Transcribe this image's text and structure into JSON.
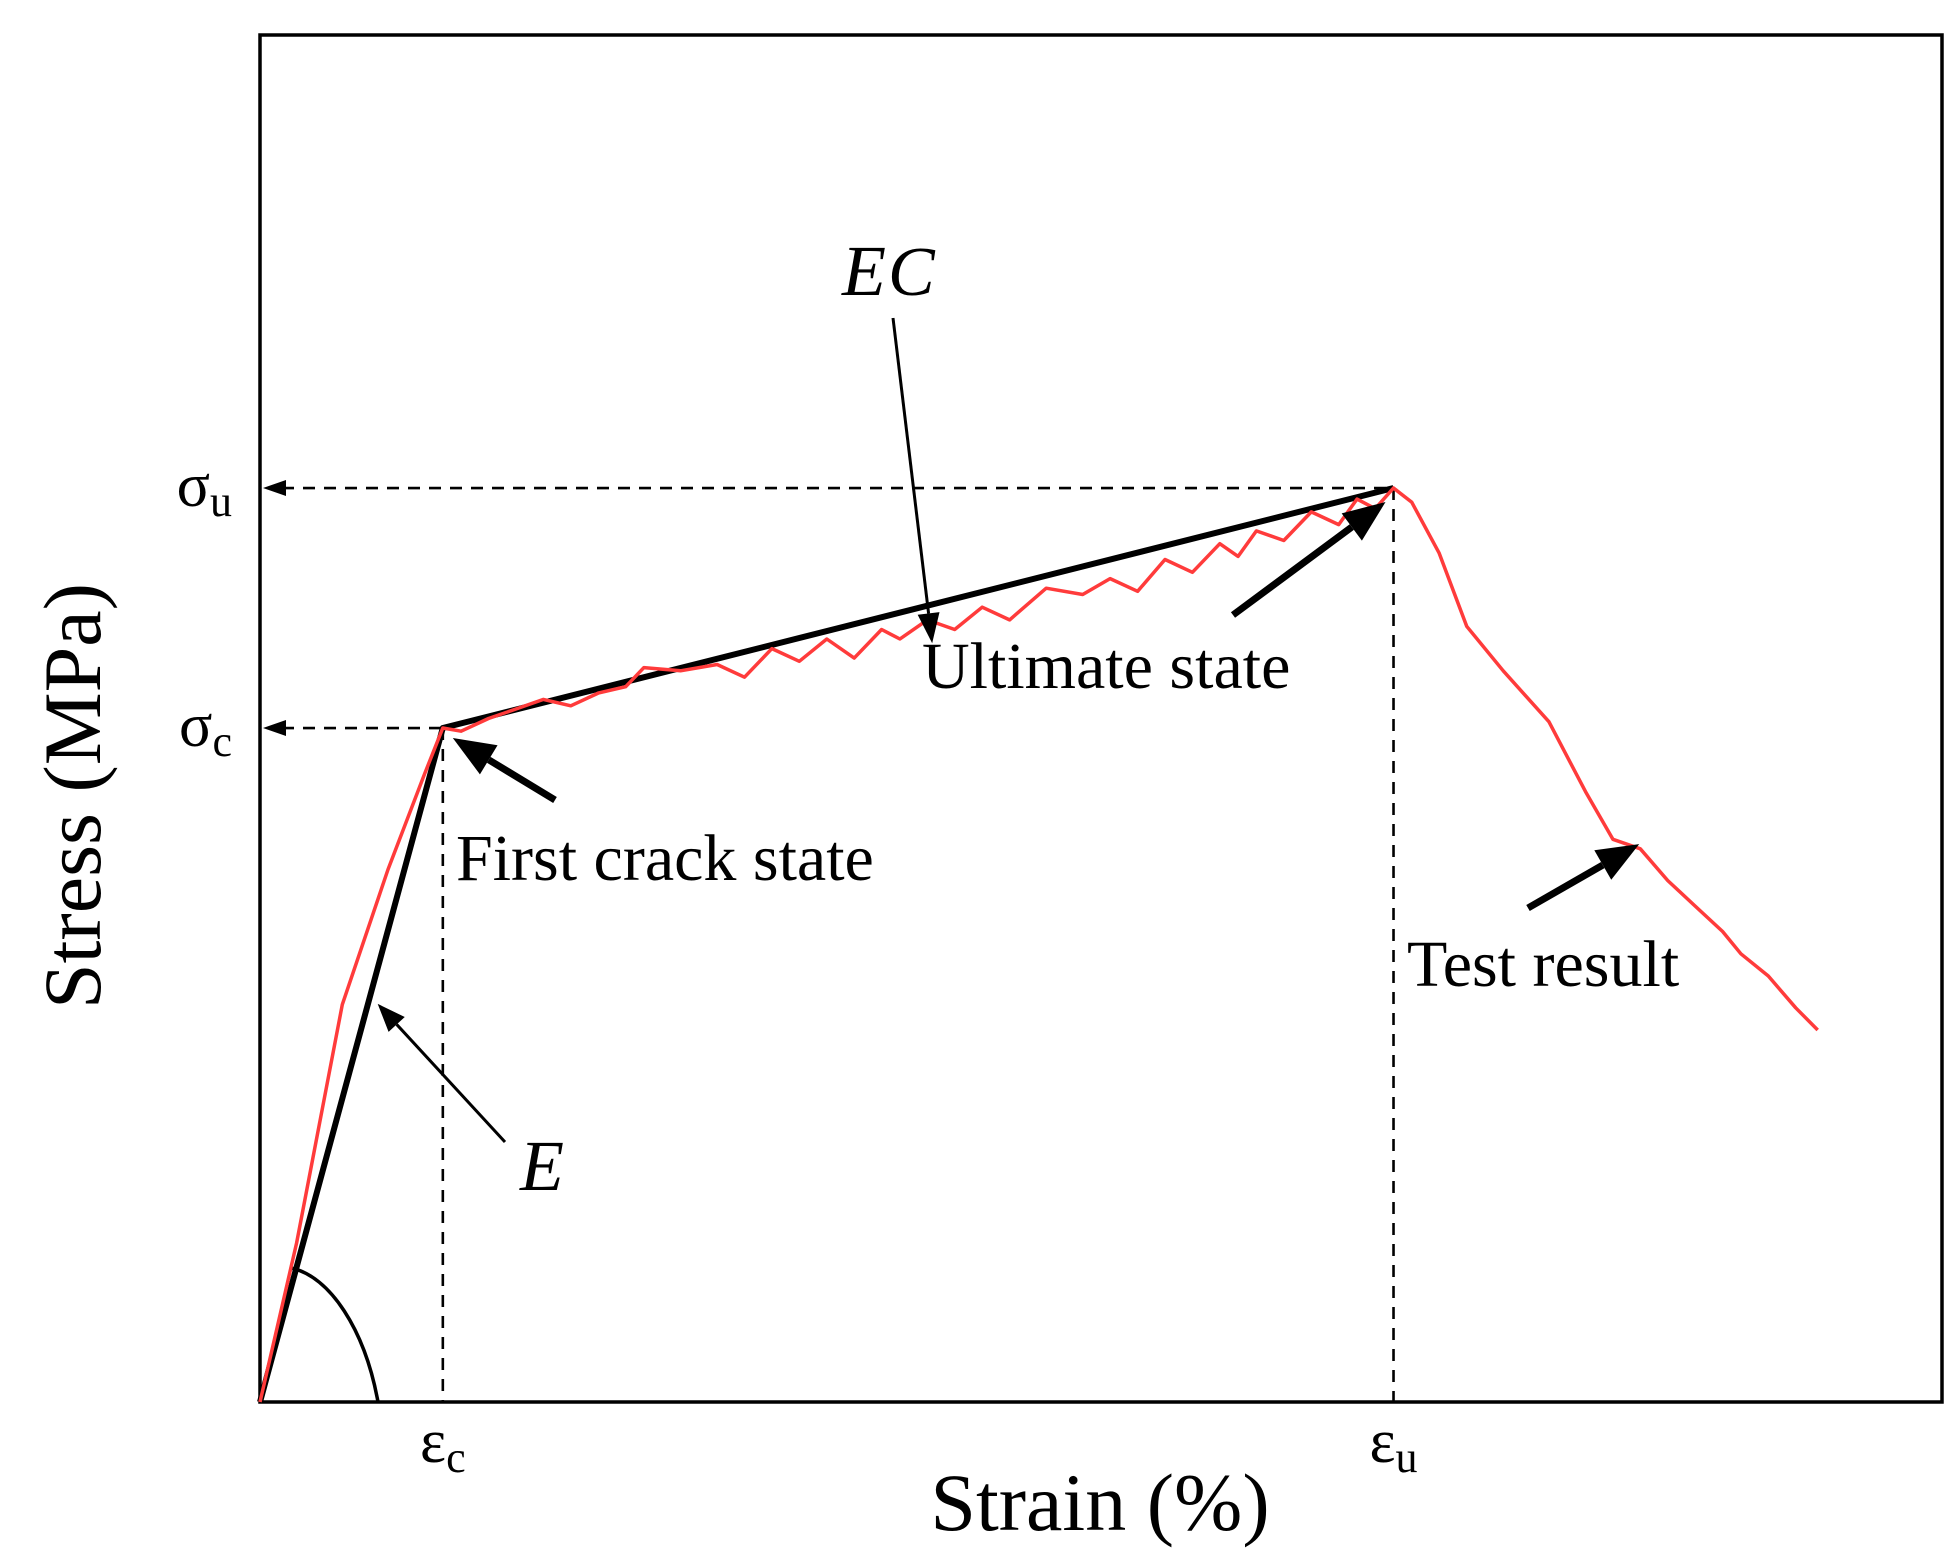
{
  "chart_data": {
    "type": "line",
    "title": "",
    "xlabel": "Strain (%)",
    "ylabel": "Stress (MPa)",
    "grid": false,
    "legend": "none",
    "x_ticks": [
      {
        "label": "ε",
        "sub": "c",
        "value": 1.0
      },
      {
        "label": "ε",
        "sub": "u",
        "value": 6.2
      }
    ],
    "y_ticks": [
      {
        "label": "σ",
        "sub": "c",
        "value": 4.24
      },
      {
        "label": "σ",
        "sub": "u",
        "value": 5.75
      }
    ],
    "xlim": [
      0,
      9.2
    ],
    "ylim": [
      0,
      8.6
    ],
    "colors": {
      "model": "#000000",
      "test": "#ff3b3b"
    },
    "series": [
      {
        "role": "bilinear-model",
        "x": [
          0,
          1.0,
          6.2
        ],
        "y": [
          0,
          4.24,
          5.75
        ]
      },
      {
        "role": "test-result",
        "x": [
          0,
          0.2,
          0.45,
          0.7,
          0.9,
          1.0,
          1.1,
          1.25,
          1.4,
          1.55,
          1.7,
          1.85,
          2.0,
          2.1,
          2.3,
          2.5,
          2.65,
          2.8,
          2.95,
          3.1,
          3.25,
          3.4,
          3.5,
          3.65,
          3.8,
          3.95,
          4.1,
          4.3,
          4.5,
          4.65,
          4.8,
          4.95,
          5.1,
          5.25,
          5.35,
          5.45,
          5.6,
          5.75,
          5.9,
          6.0,
          6.1,
          6.2,
          6.3,
          6.45,
          6.6,
          6.8,
          7.05,
          7.25,
          7.4,
          7.55,
          7.7,
          7.85,
          8.0,
          8.1,
          8.25,
          8.4,
          8.52
        ],
        "y": [
          0,
          1.0,
          2.5,
          3.35,
          3.95,
          4.24,
          4.22,
          4.3,
          4.36,
          4.42,
          4.38,
          4.46,
          4.5,
          4.62,
          4.6,
          4.64,
          4.56,
          4.74,
          4.66,
          4.8,
          4.68,
          4.86,
          4.8,
          4.92,
          4.86,
          5.0,
          4.92,
          5.12,
          5.08,
          5.18,
          5.1,
          5.3,
          5.22,
          5.4,
          5.32,
          5.48,
          5.42,
          5.6,
          5.52,
          5.68,
          5.62,
          5.75,
          5.66,
          5.34,
          4.88,
          4.6,
          4.28,
          3.84,
          3.54,
          3.48,
          3.28,
          3.12,
          2.96,
          2.82,
          2.68,
          2.48,
          2.34
        ]
      }
    ],
    "annotations": [
      {
        "text": "E",
        "italic": true,
        "target": {
          "x": 0.6,
          "y": 2.53
        }
      },
      {
        "text": "E",
        "sub": "C",
        "italic": true,
        "target": {
          "x": 3.6,
          "y": 5.0
        }
      },
      {
        "text": "First crack state",
        "target": {
          "x": 1.0,
          "y": 4.24
        }
      },
      {
        "text": "Ultimate state",
        "target": {
          "x": 6.2,
          "y": 5.75
        }
      },
      {
        "text": "Test result",
        "target": {
          "x": 7.5,
          "y": 3.56
        }
      }
    ]
  }
}
